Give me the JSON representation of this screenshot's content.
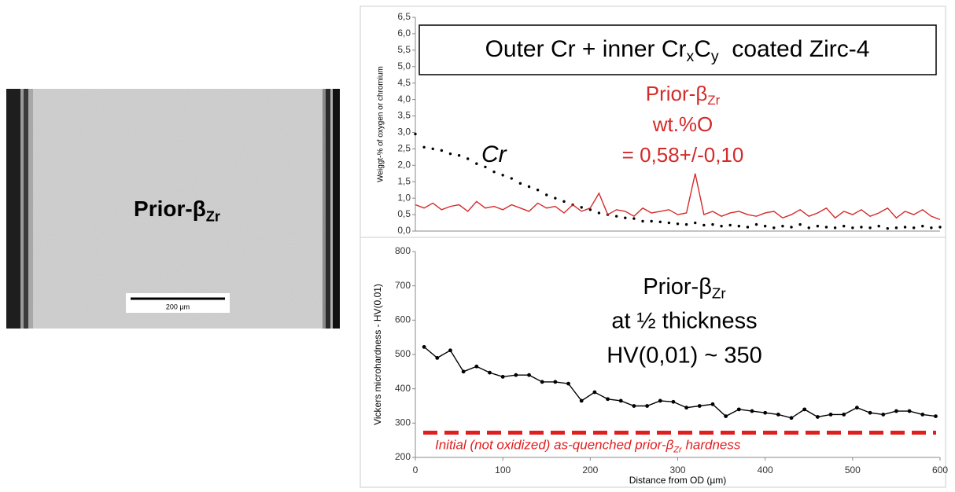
{
  "micrograph": {
    "label": [
      "Prior-β",
      "Zr"
    ],
    "scale_bar": "200 µm"
  },
  "chart_data": [
    {
      "type": "line",
      "title": [
        "Outer Cr + inner Cr",
        "x",
        "C",
        "y",
        "  coated Zirc-4"
      ],
      "y_label": "Weiggt-% of oxygen or chromium",
      "xlim": [
        0,
        600
      ],
      "ylim": [
        0,
        6.5
      ],
      "yticks": [
        {
          "value": 0,
          "label": "0,0"
        },
        {
          "value": 0.5,
          "label": "0,5"
        },
        {
          "value": 1,
          "label": "1,0"
        },
        {
          "value": 1.5,
          "label": "1,5"
        },
        {
          "value": 2,
          "label": "2,0"
        },
        {
          "value": 2.5,
          "label": "2,5"
        },
        {
          "value": 3,
          "label": "3,0"
        },
        {
          "value": 3.5,
          "label": "3,5"
        },
        {
          "value": 4,
          "label": "4,0"
        },
        {
          "value": 4.5,
          "label": "4,5"
        },
        {
          "value": 5,
          "label": "5,0"
        },
        {
          "value": 5.5,
          "label": "5,5"
        },
        {
          "value": 6,
          "label": "6,0"
        },
        {
          "value": 6.5,
          "label": "6,5"
        }
      ],
      "x": [
        0,
        10,
        20,
        30,
        40,
        50,
        60,
        70,
        80,
        90,
        100,
        110,
        120,
        130,
        140,
        150,
        160,
        170,
        180,
        190,
        200,
        210,
        220,
        230,
        240,
        250,
        260,
        270,
        280,
        290,
        300,
        310,
        320,
        330,
        340,
        350,
        360,
        370,
        380,
        390,
        400,
        410,
        420,
        430,
        440,
        450,
        460,
        470,
        480,
        490,
        500,
        510,
        520,
        530,
        540,
        550,
        560,
        570,
        580,
        590,
        600
      ],
      "series": [
        {
          "name": "Cr",
          "color": "#000000",
          "marker": "dot",
          "line": false,
          "values": [
            2.95,
            2.55,
            2.5,
            2.45,
            2.35,
            2.3,
            2.2,
            2.05,
            1.95,
            1.8,
            1.7,
            1.6,
            1.45,
            1.35,
            1.25,
            1.1,
            1.0,
            0.9,
            0.8,
            0.72,
            0.65,
            0.55,
            0.5,
            0.45,
            0.4,
            0.38,
            0.3,
            0.3,
            0.28,
            0.25,
            0.22,
            0.2,
            0.25,
            0.18,
            0.2,
            0.15,
            0.18,
            0.15,
            0.12,
            0.2,
            0.15,
            0.1,
            0.15,
            0.12,
            0.2,
            0.1,
            0.15,
            0.12,
            0.1,
            0.15,
            0.1,
            0.12,
            0.1,
            0.15,
            0.08,
            0.1,
            0.12,
            0.1,
            0.15,
            0.1,
            0.12
          ]
        },
        {
          "color": "#d42a2a",
          "marker": "none",
          "line": true,
          "values": [
            0.8,
            0.7,
            0.85,
            0.65,
            0.75,
            0.8,
            0.6,
            0.9,
            0.7,
            0.75,
            0.65,
            0.8,
            0.7,
            0.6,
            0.85,
            0.7,
            0.75,
            0.55,
            0.8,
            0.6,
            0.7,
            1.15,
            0.5,
            0.65,
            0.6,
            0.45,
            0.7,
            0.55,
            0.6,
            0.65,
            0.5,
            0.55,
            1.75,
            0.5,
            0.6,
            0.45,
            0.55,
            0.6,
            0.5,
            0.45,
            0.55,
            0.6,
            0.4,
            0.5,
            0.65,
            0.45,
            0.55,
            0.7,
            0.4,
            0.6,
            0.5,
            0.65,
            0.45,
            0.55,
            0.7,
            0.4,
            0.6,
            0.5,
            0.65,
            0.45,
            0.35
          ]
        }
      ],
      "annotation": {
        "line1": [
          "Prior-β",
          "Zr"
        ],
        "line2": "wt.%O",
        "line3": "= 0,58+/-0,10",
        "color": "#d42a2a"
      }
    },
    {
      "type": "line",
      "x_label": "Distance from OD (µm)",
      "y_label": "Vickers microhardness - HV(0,01)",
      "xlim": [
        0,
        600
      ],
      "xticks": [
        0,
        100,
        200,
        300,
        400,
        500,
        600
      ],
      "ylim": [
        200,
        800
      ],
      "yticks": [
        200,
        300,
        400,
        500,
        600,
        700,
        800
      ],
      "x": [
        10,
        25,
        40,
        55,
        70,
        85,
        100,
        115,
        130,
        145,
        160,
        175,
        190,
        205,
        220,
        235,
        250,
        265,
        280,
        295,
        310,
        325,
        340,
        355,
        370,
        385,
        400,
        415,
        430,
        445,
        460,
        475,
        490,
        505,
        520,
        535,
        550,
        565,
        580,
        595
      ],
      "series": [
        {
          "color": "#000000",
          "marker": "dot",
          "line": true,
          "values": [
            522,
            490,
            512,
            450,
            465,
            447,
            435,
            440,
            440,
            420,
            420,
            415,
            365,
            390,
            370,
            365,
            350,
            350,
            365,
            362,
            345,
            350,
            355,
            320,
            340,
            335,
            330,
            325,
            315,
            340,
            318,
            325,
            325,
            345,
            330,
            325,
            335,
            335,
            325,
            320
          ]
        }
      ],
      "annotation": {
        "line1": [
          "Prior-β",
          "Zr"
        ],
        "line2": "at ½ thickness",
        "line3": "HV(0,01) ~ 350",
        "color": "#000000"
      },
      "reference_line": {
        "value": 272,
        "color": "#e01e1e",
        "label": [
          "Initial (not oxidized) as-quenched prior-β",
          "Zr",
          " hardness"
        ]
      }
    }
  ]
}
